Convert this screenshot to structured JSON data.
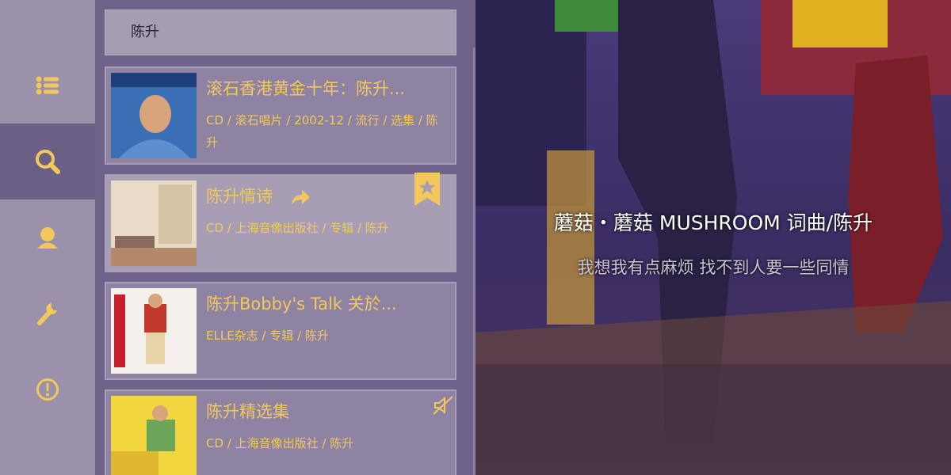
{
  "search": {
    "query": "陈升"
  },
  "results": [
    {
      "title": "滚石香港黄金十年：陈升...",
      "meta": "CD / 滚石唱片 / 2002-12 / 流行 / 选集 / 陈升"
    },
    {
      "title": "陈升情诗",
      "meta": "CD / 上海音像出版社 / 专辑 / 陈升"
    },
    {
      "title": "陈升Bobby's Talk 关於...",
      "meta": "ELLE杂志 / 专辑 / 陈升"
    },
    {
      "title": "陈升精选集",
      "meta": "CD / 上海音像出版社 / 陈升"
    }
  ],
  "lyrics": {
    "current": "蘑菇・蘑菇 MUSHROOM 词曲/陈升",
    "next": "我想我有点麻烦 找不到人要一些同情"
  }
}
